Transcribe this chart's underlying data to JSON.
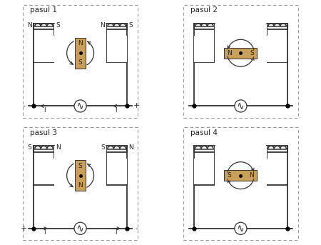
{
  "panels": [
    {
      "title": "pasul 1",
      "magnet_orientation": "vertical",
      "magnet_top": "N",
      "magnet_bottom": "S",
      "left_pole_left": "N",
      "left_pole_right": "S",
      "right_pole_left": "N",
      "right_pole_right": "S",
      "left_terminal": "-",
      "right_terminal": "+",
      "current_dir": "left",
      "rotation_arrows": "vertical_ccw",
      "show_current_labels": true
    },
    {
      "title": "pasul 2",
      "magnet_orientation": "horizontal",
      "magnet_left": "N",
      "magnet_right": "S",
      "left_pole_left": "",
      "left_pole_right": "",
      "right_pole_left": "",
      "right_pole_right": "",
      "left_terminal": "",
      "right_terminal": "",
      "current_dir": "none",
      "rotation_arrows": "horizontal_ccw",
      "show_current_labels": false
    },
    {
      "title": "pasul 3",
      "magnet_orientation": "vertical",
      "magnet_top": "S",
      "magnet_bottom": "N",
      "left_pole_left": "S",
      "left_pole_right": "N",
      "right_pole_left": "S",
      "right_pole_right": "N",
      "left_terminal": "+",
      "right_terminal": "-",
      "current_dir": "right",
      "rotation_arrows": "vertical_ccw",
      "show_current_labels": true
    },
    {
      "title": "pasul 4",
      "magnet_orientation": "horizontal",
      "magnet_left": "S",
      "magnet_right": "N",
      "left_pole_left": "",
      "left_pole_right": "",
      "right_pole_left": "",
      "right_pole_right": "",
      "left_terminal": "",
      "right_terminal": "",
      "current_dir": "none",
      "rotation_arrows": "horizontal_cw",
      "show_current_labels": false
    }
  ],
  "magnet_color": "#c8a05a",
  "background_color": "#ffffff",
  "line_color": "#333333",
  "text_color": "#222222"
}
